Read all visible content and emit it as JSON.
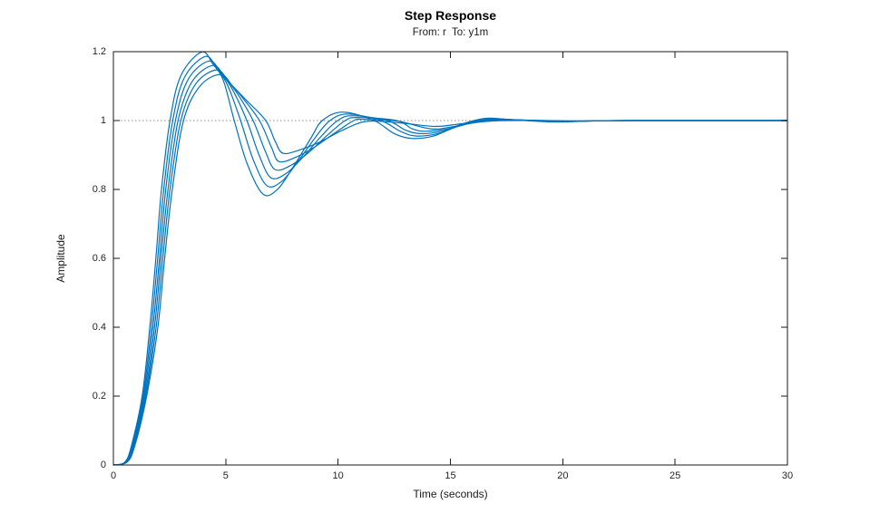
{
  "figure": {
    "title": "Step Response",
    "subtitle": "From: r  To: y1m",
    "xlabel": "Time (seconds)",
    "ylabel": "Amplitude"
  },
  "colors": {
    "line": "#0072BD",
    "axis": "#1a1a1a",
    "tick_text": "#262626",
    "reference_line": "#8c8c8c",
    "background": "#ffffff"
  },
  "chart_data": {
    "type": "line",
    "title": "Step Response",
    "subtitle": "From: r  To: y1m",
    "xlabel": "Time (seconds)",
    "ylabel": "Amplitude",
    "xlim": [
      0,
      30
    ],
    "ylim": [
      0,
      1.2
    ],
    "xticks": [
      0,
      5,
      10,
      15,
      20,
      25,
      30
    ],
    "yticks": [
      0,
      0.2,
      0.4,
      0.6,
      0.8,
      1,
      1.2
    ],
    "grid": false,
    "legend": "none",
    "reference_line_y": 1,
    "line_color": "#0072BD",
    "series": [
      {
        "name": "curve-1",
        "peak": {
          "t": 3.92,
          "y": 1.199
        },
        "min": {
          "t": 6.65,
          "y": 0.787
        },
        "points": [
          [
            0,
            0
          ],
          [
            0.5,
            0.008
          ],
          [
            0.8,
            0.055
          ],
          [
            1.28,
            0.2
          ],
          [
            1.62,
            0.4
          ],
          [
            1.89,
            0.6
          ],
          [
            2.14,
            0.8
          ],
          [
            2.52,
            1.0
          ],
          [
            3.0,
            1.13
          ],
          [
            3.92,
            1.199
          ],
          [
            4.45,
            1.162
          ],
          [
            4.9,
            1.115
          ],
          [
            5.38,
            1.0
          ],
          [
            5.95,
            0.875
          ],
          [
            6.65,
            0.787
          ],
          [
            7.3,
            0.8
          ],
          [
            8.0,
            0.865
          ],
          [
            8.8,
            0.95
          ],
          [
            9.3,
            1.0
          ],
          [
            10.2,
            1.0245
          ],
          [
            11.6,
            1.0
          ],
          [
            12.5,
            0.962
          ],
          [
            13.3,
            0.948
          ],
          [
            14.3,
            0.956
          ],
          [
            15.3,
            0.985
          ],
          [
            16.5,
            1.006
          ],
          [
            17.6,
            1.003
          ],
          [
            19.6,
            0.996
          ],
          [
            21.3,
            0.9993
          ],
          [
            23.0,
            1.0
          ],
          [
            26.5,
            1.0
          ],
          [
            30,
            1.0
          ]
        ]
      },
      {
        "name": "curve-2",
        "peak": {
          "t": 4.09,
          "y": 1.186
        },
        "min": {
          "t": 6.83,
          "y": 0.811
        },
        "points": [
          [
            0,
            0
          ],
          [
            0.52,
            0.008
          ],
          [
            0.83,
            0.055
          ],
          [
            1.32,
            0.2
          ],
          [
            1.69,
            0.4
          ],
          [
            1.97,
            0.6
          ],
          [
            2.24,
            0.8
          ],
          [
            2.64,
            1.0
          ],
          [
            3.16,
            1.125
          ],
          [
            4.09,
            1.186
          ],
          [
            4.62,
            1.15
          ],
          [
            5.1,
            1.1
          ],
          [
            5.66,
            1.0
          ],
          [
            6.22,
            0.887
          ],
          [
            6.83,
            0.811
          ],
          [
            7.5,
            0.824
          ],
          [
            8.2,
            0.88
          ],
          [
            9.0,
            0.952
          ],
          [
            9.64,
            1.0
          ],
          [
            10.42,
            1.019
          ],
          [
            11.9,
            1.0
          ],
          [
            12.8,
            0.968
          ],
          [
            13.5,
            0.955
          ],
          [
            14.5,
            0.963
          ],
          [
            15.5,
            0.988
          ],
          [
            16.7,
            1.005
          ],
          [
            17.8,
            1.0025
          ],
          [
            19.8,
            0.9966
          ],
          [
            21.5,
            0.9994
          ],
          [
            23.2,
            1.0
          ],
          [
            26.5,
            1.0
          ],
          [
            30,
            1.0
          ]
        ]
      },
      {
        "name": "curve-3",
        "peak": {
          "t": 4.26,
          "y": 1.173
        },
        "min": {
          "t": 7.01,
          "y": 0.834
        },
        "points": [
          [
            0,
            0
          ],
          [
            0.54,
            0.008
          ],
          [
            0.86,
            0.055
          ],
          [
            1.36,
            0.2
          ],
          [
            1.76,
            0.4
          ],
          [
            2.05,
            0.6
          ],
          [
            2.33,
            0.8
          ],
          [
            2.76,
            1.0
          ],
          [
            3.33,
            1.12
          ],
          [
            4.26,
            1.173
          ],
          [
            4.8,
            1.137
          ],
          [
            5.3,
            1.09
          ],
          [
            5.94,
            1.0
          ],
          [
            6.49,
            0.899
          ],
          [
            7.01,
            0.834
          ],
          [
            7.7,
            0.847
          ],
          [
            8.45,
            0.895
          ],
          [
            9.3,
            0.958
          ],
          [
            9.98,
            1.0
          ],
          [
            10.64,
            1.014
          ],
          [
            12.2,
            1.0
          ],
          [
            13.0,
            0.972
          ],
          [
            13.7,
            0.962
          ],
          [
            14.7,
            0.97
          ],
          [
            15.7,
            0.99
          ],
          [
            16.9,
            1.0036
          ],
          [
            18.0,
            1.002
          ],
          [
            20.0,
            0.9972
          ],
          [
            21.7,
            0.9995
          ],
          [
            23.4,
            1.0
          ],
          [
            26.5,
            1.0
          ],
          [
            30,
            1.0
          ]
        ]
      },
      {
        "name": "curve-4",
        "peak": {
          "t": 4.43,
          "y": 1.16
        },
        "min": {
          "t": 7.19,
          "y": 0.858
        },
        "points": [
          [
            0,
            0
          ],
          [
            0.56,
            0.008
          ],
          [
            0.89,
            0.055
          ],
          [
            1.4,
            0.2
          ],
          [
            1.83,
            0.4
          ],
          [
            2.12,
            0.6
          ],
          [
            2.43,
            0.8
          ],
          [
            2.88,
            1.0
          ],
          [
            3.5,
            1.113
          ],
          [
            4.43,
            1.16
          ],
          [
            4.97,
            1.125
          ],
          [
            5.5,
            1.08
          ],
          [
            6.22,
            1.0
          ],
          [
            6.76,
            0.911
          ],
          [
            7.19,
            0.858
          ],
          [
            7.9,
            0.87
          ],
          [
            8.7,
            0.908
          ],
          [
            9.6,
            0.962
          ],
          [
            10.32,
            1.0
          ],
          [
            10.86,
            1.009
          ],
          [
            12.6,
            1.0
          ],
          [
            13.3,
            0.976
          ],
          [
            13.9,
            0.969
          ],
          [
            14.9,
            0.976
          ],
          [
            15.9,
            0.992
          ],
          [
            17.1,
            1.0024
          ],
          [
            18.2,
            1.0015
          ],
          [
            20.2,
            0.9978
          ],
          [
            21.9,
            0.9996
          ],
          [
            23.6,
            1.0
          ],
          [
            26.5,
            1.0
          ],
          [
            30,
            1.0
          ]
        ]
      },
      {
        "name": "curve-5",
        "peak": {
          "t": 4.6,
          "y": 1.147
        },
        "min": {
          "t": 7.37,
          "y": 0.881
        },
        "points": [
          [
            0,
            0
          ],
          [
            0.58,
            0.008
          ],
          [
            0.92,
            0.055
          ],
          [
            1.44,
            0.2
          ],
          [
            1.9,
            0.4
          ],
          [
            2.2,
            0.6
          ],
          [
            2.52,
            0.8
          ],
          [
            3.0,
            1.0
          ],
          [
            3.67,
            1.107
          ],
          [
            4.6,
            1.147
          ],
          [
            5.14,
            1.112
          ],
          [
            5.7,
            1.07
          ],
          [
            6.5,
            1.0
          ],
          [
            7.03,
            0.923
          ],
          [
            7.37,
            0.881
          ],
          [
            8.1,
            0.893
          ],
          [
            8.95,
            0.923
          ],
          [
            9.9,
            0.966
          ],
          [
            10.7,
            1.0
          ],
          [
            11.08,
            1.0033
          ],
          [
            12.6,
            0.999
          ],
          [
            14.1,
            0.976
          ],
          [
            15.1,
            0.982
          ],
          [
            16.1,
            0.994
          ],
          [
            17.3,
            1.0012
          ],
          [
            18.4,
            1.001
          ],
          [
            20.4,
            0.9984
          ],
          [
            22.1,
            0.9997
          ],
          [
            23.8,
            1.0
          ],
          [
            26.5,
            1.0
          ],
          [
            30,
            1.0
          ]
        ]
      },
      {
        "name": "curve-6",
        "peak": {
          "t": 4.77,
          "y": 1.134
        },
        "min": {
          "t": 7.55,
          "y": 0.905
        },
        "points": [
          [
            0,
            0
          ],
          [
            0.6,
            0.008
          ],
          [
            0.95,
            0.055
          ],
          [
            1.48,
            0.2
          ],
          [
            1.98,
            0.4
          ],
          [
            2.28,
            0.6
          ],
          [
            2.62,
            0.8
          ],
          [
            3.12,
            1.0
          ],
          [
            3.85,
            1.1
          ],
          [
            4.77,
            1.134
          ],
          [
            5.31,
            1.1
          ],
          [
            5.9,
            1.06
          ],
          [
            6.78,
            1.0
          ],
          [
            7.2,
            0.94
          ],
          [
            7.55,
            0.905
          ],
          [
            8.3,
            0.915
          ],
          [
            9.2,
            0.938
          ],
          [
            10.2,
            0.972
          ],
          [
            11.3,
            0.998
          ],
          [
            12.9,
            0.992
          ],
          [
            14.3,
            0.983
          ],
          [
            15.4,
            0.99
          ],
          [
            16.4,
            0.997
          ],
          [
            17.5,
            1.0
          ],
          [
            19.0,
            1.0002
          ],
          [
            20.6,
            0.999
          ],
          [
            22.5,
            0.9999
          ],
          [
            24.0,
            1.0
          ],
          [
            26.5,
            1.0
          ],
          [
            30,
            1.0
          ]
        ]
      }
    ]
  }
}
